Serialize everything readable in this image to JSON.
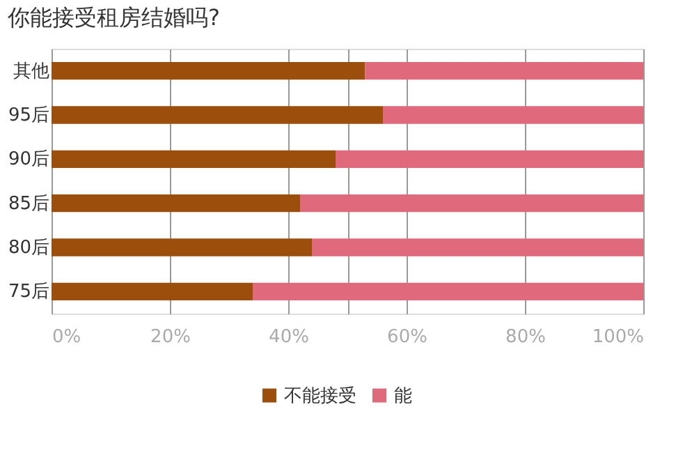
{
  "chart_data": {
    "type": "bar",
    "orientation": "horizontal",
    "stacked": true,
    "title": "你能接受租房结婚吗?",
    "categories": [
      "其他",
      "95后",
      "90后",
      "85后",
      "80后",
      "75后"
    ],
    "series": [
      {
        "name": "不能接受",
        "color": "#9c4e0c",
        "values": [
          53,
          56,
          48,
          42,
          44,
          34
        ]
      },
      {
        "name": "能",
        "color": "#e0697c",
        "values": [
          47,
          44,
          52,
          58,
          56,
          66
        ]
      }
    ],
    "xlim": [
      0,
      100
    ],
    "xticks": [
      {
        "value": 0,
        "label": "0%"
      },
      {
        "value": 20,
        "label": "20%"
      },
      {
        "value": 40,
        "label": "40%"
      },
      {
        "value": 50,
        "label": null
      },
      {
        "value": 60,
        "label": "60%"
      },
      {
        "value": 80,
        "label": "80%"
      },
      {
        "value": 100,
        "label": "100%"
      }
    ],
    "grid": "x",
    "legend": "bottom"
  }
}
